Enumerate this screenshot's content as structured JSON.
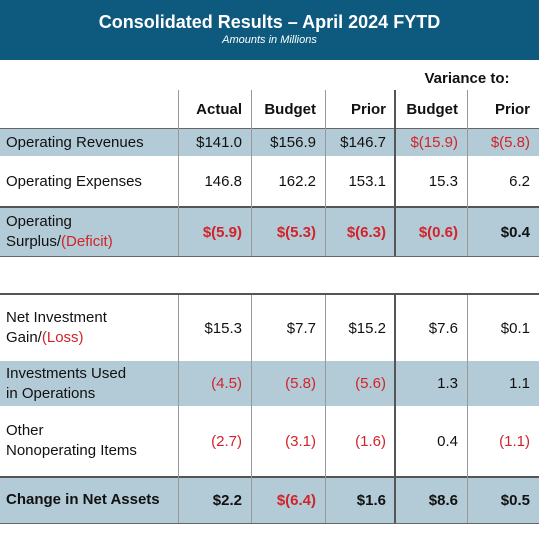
{
  "header": {
    "title": "Consolidated Results – April 2024 FYTD",
    "subtitle": "Amounts in Millions"
  },
  "variance_title": "Variance to:",
  "columns": [
    "Actual",
    "Budget",
    "Prior",
    "Budget",
    "Prior"
  ],
  "rows": [
    {
      "label": "Operating Revenues",
      "values": [
        "$141.0",
        "$156.9",
        "$146.7",
        "$(15.9)",
        "$(5.8)"
      ]
    },
    {
      "label": "Operating Expenses",
      "values": [
        "146.8",
        "162.2",
        "153.1",
        "15.3",
        "6.2"
      ]
    },
    {
      "label_line1": "Operating",
      "label_line2_a": "Surplus/",
      "label_line2_b": "(Deficit)",
      "values": [
        "$(5.9)",
        "$(5.3)",
        "$(6.3)",
        "$(0.6)",
        "$0.4"
      ]
    },
    {
      "label_line1": "Net Investment",
      "label_line2_a": "Gain/",
      "label_line2_b": "(Loss)",
      "values": [
        "$15.3",
        "$7.7",
        "$15.2",
        "$7.6",
        "$0.1"
      ]
    },
    {
      "label_line1": "Investments Used",
      "label_line2": "in Operations",
      "values": [
        "(4.5)",
        "(5.8)",
        "(5.6)",
        "1.3",
        "1.1"
      ]
    },
    {
      "label_line1": "Other",
      "label_line2": "Nonoperating Items",
      "values": [
        "(2.7)",
        "(3.1)",
        "(1.6)",
        "0.4",
        "(1.1)"
      ]
    },
    {
      "label": "Change in Net Assets",
      "values": [
        "$2.2",
        "$(6.4)",
        "$1.6",
        "$8.6",
        "$0.5"
      ]
    }
  ],
  "colors": {
    "header_bg": "#0e5a7e",
    "shade": "#b2cbd6",
    "negative": "#d2232a"
  }
}
